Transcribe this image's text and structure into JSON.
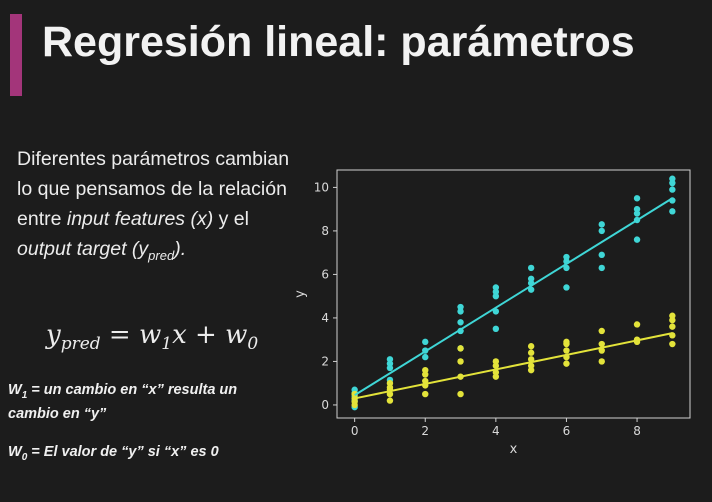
{
  "slide": {
    "title": "Regresión lineal: parámetros",
    "accent_color": "#a3357a",
    "text": {
      "p1": "Diferentes parámetros cambian lo que pensamos de la relación entre ",
      "p1_em": "input features (x)",
      "p2": " y el ",
      "p2_em": "output target (y",
      "p2_sub": "pred",
      "p2_end": ")."
    },
    "formula": {
      "y": "y",
      "y_sub": "pred",
      "eq": " = ",
      "w1": "w",
      "w1_sub": "1",
      "x": "x",
      "plus": " + ",
      "w0": "w",
      "w0_sub": "0"
    },
    "note1": {
      "w": "W",
      "sub": "1",
      "text": " = un cambio en “x” resulta un cambio en “y”"
    },
    "note2": {
      "w": "W",
      "sub": "0",
      "text": " = El valor de “y” si “x” es 0"
    }
  },
  "chart_data": {
    "type": "scatter",
    "xlabel": "x",
    "ylabel": "y",
    "xlim": [
      -0.5,
      9.5
    ],
    "ylim": [
      -0.6,
      10.8
    ],
    "xticks": [
      0,
      2,
      4,
      6,
      8
    ],
    "yticks": [
      0,
      2,
      4,
      6,
      8,
      10
    ],
    "series": [
      {
        "color": "#3fd6d6",
        "line": {
          "x": [
            0,
            9
          ],
          "y": [
            0.45,
            9.5
          ]
        },
        "points": [
          [
            0,
            -0.1
          ],
          [
            0,
            0.2
          ],
          [
            0,
            0.4
          ],
          [
            0,
            0.55
          ],
          [
            0,
            0.7
          ],
          [
            1,
            1.15
          ],
          [
            1,
            1.7
          ],
          [
            1,
            1.9
          ],
          [
            1,
            2.1
          ],
          [
            2,
            2.2
          ],
          [
            2,
            2.5
          ],
          [
            2,
            2.9
          ],
          [
            3,
            2.6
          ],
          [
            3,
            3.4
          ],
          [
            3,
            3.8
          ],
          [
            3,
            4.3
          ],
          [
            3,
            4.5
          ],
          [
            4,
            3.5
          ],
          [
            4,
            4.3
          ],
          [
            4,
            5.0
          ],
          [
            4,
            5.2
          ],
          [
            4,
            5.4
          ],
          [
            5,
            5.3
          ],
          [
            5,
            5.6
          ],
          [
            5,
            5.8
          ],
          [
            5,
            6.3
          ],
          [
            6,
            5.4
          ],
          [
            6,
            6.3
          ],
          [
            6,
            6.6
          ],
          [
            6,
            6.8
          ],
          [
            7,
            6.3
          ],
          [
            7,
            6.9
          ],
          [
            7,
            8.0
          ],
          [
            7,
            8.3
          ],
          [
            8,
            7.6
          ],
          [
            8,
            8.5
          ],
          [
            8,
            8.8
          ],
          [
            8,
            9.0
          ],
          [
            8,
            9.5
          ],
          [
            9,
            8.9
          ],
          [
            9,
            9.4
          ],
          [
            9,
            9.9
          ],
          [
            9,
            10.2
          ],
          [
            9,
            10.4
          ]
        ]
      },
      {
        "color": "#e3e33a",
        "line": {
          "x": [
            0,
            9
          ],
          "y": [
            0.3,
            3.3
          ]
        },
        "points": [
          [
            0,
            0.0
          ],
          [
            0,
            0.15
          ],
          [
            0,
            0.3
          ],
          [
            0,
            0.5
          ],
          [
            1,
            0.2
          ],
          [
            1,
            0.5
          ],
          [
            1,
            0.7
          ],
          [
            1,
            0.8
          ],
          [
            1,
            1.0
          ],
          [
            2,
            0.5
          ],
          [
            2,
            0.9
          ],
          [
            2,
            1.1
          ],
          [
            2,
            1.4
          ],
          [
            2,
            1.6
          ],
          [
            3,
            0.5
          ],
          [
            3,
            1.3
          ],
          [
            3,
            2.0
          ],
          [
            3,
            2.6
          ],
          [
            4,
            1.3
          ],
          [
            4,
            1.5
          ],
          [
            4,
            1.8
          ],
          [
            4,
            2.0
          ],
          [
            5,
            1.6
          ],
          [
            5,
            1.8
          ],
          [
            5,
            2.1
          ],
          [
            5,
            2.4
          ],
          [
            5,
            2.7
          ],
          [
            6,
            1.9
          ],
          [
            6,
            2.2
          ],
          [
            6,
            2.5
          ],
          [
            6,
            2.8
          ],
          [
            6,
            2.9
          ],
          [
            7,
            2.0
          ],
          [
            7,
            2.5
          ],
          [
            7,
            2.8
          ],
          [
            7,
            3.4
          ],
          [
            8,
            2.9
          ],
          [
            8,
            3.0
          ],
          [
            8,
            3.7
          ],
          [
            9,
            2.8
          ],
          [
            9,
            3.2
          ],
          [
            9,
            3.6
          ],
          [
            9,
            3.9
          ],
          [
            9,
            4.1
          ]
        ]
      }
    ]
  }
}
